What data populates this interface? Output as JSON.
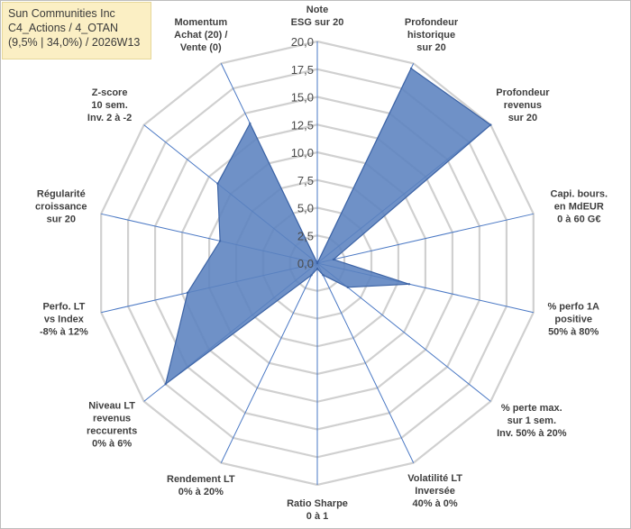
{
  "title_box": {
    "line1": "Sun Communities Inc",
    "line2": "C4_Actions / 4_OTAN",
    "line3": "(9,5% | 34,0%) / 2026W13"
  },
  "chart_data": {
    "type": "radar",
    "title": "Sun Communities Inc",
    "r_range": [
      0,
      20
    ],
    "r_ticks": [
      "0,0",
      "2,5",
      "5,0",
      "7,5",
      "10,0",
      "12,5",
      "15,0",
      "17,5",
      "20,0"
    ],
    "axes": [
      {
        "label": [
          "Note",
          "ESG sur 20"
        ],
        "value": 0
      },
      {
        "label": [
          "Profondeur",
          "historique",
          "sur 20"
        ],
        "value": 19.5
      },
      {
        "label": [
          "Profondeur",
          "revenus",
          "sur 20"
        ],
        "value": 20
      },
      {
        "label": [
          "Capi. bours.",
          "en MdEUR",
          "0 à 60 G€"
        ],
        "value": 1.5
      },
      {
        "label": [
          "% perfo 1A",
          "positive",
          "50% à 80%"
        ],
        "value": 8.5
      },
      {
        "label": [
          "% perte max.",
          "sur 1 sem.",
          "Inv. 50% à 20%"
        ],
        "value": 3.5
      },
      {
        "label": [
          "Volatilité LT",
          "Inversée",
          "40% à 0%"
        ],
        "value": 1.2
      },
      {
        "label": [
          "Ratio Sharpe",
          "0 à 1"
        ],
        "value": 0.5
      },
      {
        "label": [
          "Rendement LT",
          "0% à 20%"
        ],
        "value": 1.2
      },
      {
        "label": [
          "Niveau LT",
          "revenus",
          "reccurents",
          "0% à 6%"
        ],
        "value": 17.5
      },
      {
        "label": [
          "Perfo. LT",
          "vs Index",
          "-8% à 12%"
        ],
        "value": 12
      },
      {
        "label": [
          "Régularité",
          "croissance",
          "sur 20"
        ],
        "value": 9
      },
      {
        "label": [
          "Z-score",
          "10 sem.",
          "Inv. 2 à -2"
        ],
        "value": 11.5
      },
      {
        "label": [
          "Momentum",
          "Achat (20) /",
          "Vente (0)"
        ],
        "value": 14
      }
    ],
    "colors": {
      "fill": "#5b82bf",
      "stroke": "#3c63a5",
      "grid": "#d0d0d0",
      "spoke": "#4a78c4"
    }
  }
}
